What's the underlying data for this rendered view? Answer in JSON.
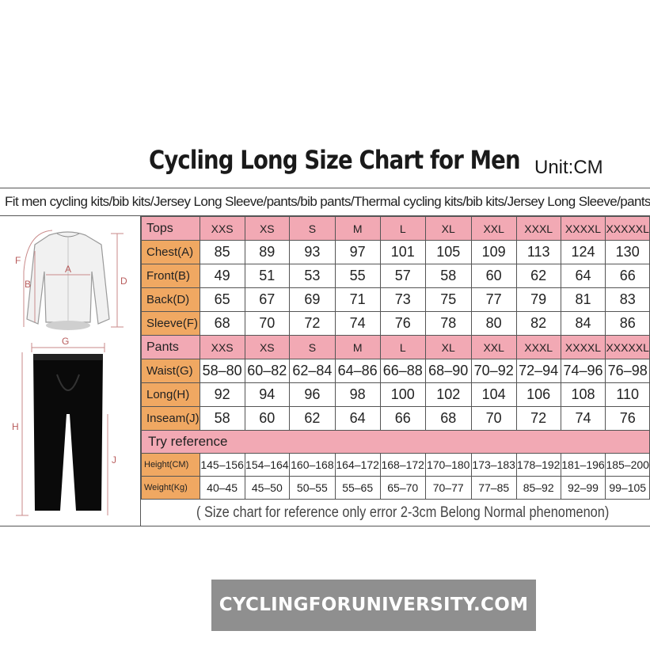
{
  "title": "Cycling Long Size Chart for Men",
  "unit": "Unit:CM",
  "fit_line": "Fit men cycling kits/bib kits/Jersey Long Sleeve/pants/bib pants/Thermal cycling kits/bib kits/Jersey Long Sleeve/pants/bib pants",
  "diagram_labels": {
    "a": "A",
    "b": "B",
    "d": "D",
    "f": "F",
    "g": "G",
    "h": "H",
    "j": "J"
  },
  "colors": {
    "label_orange": "#f0a862",
    "header_pink": "#f2a9b4",
    "watermark_bg": "#8f8f8f"
  },
  "tops": {
    "header": "Tops",
    "sizes": [
      "XXS",
      "XS",
      "S",
      "M",
      "L",
      "XL",
      "XXL",
      "XXXL",
      "XXXXL",
      "XXXXXL"
    ],
    "rows": [
      {
        "label": "Chest(A)",
        "values": [
          "85",
          "89",
          "93",
          "97",
          "101",
          "105",
          "109",
          "113",
          "124",
          "130"
        ]
      },
      {
        "label": "Front(B)",
        "values": [
          "49",
          "51",
          "53",
          "55",
          "57",
          "58",
          "60",
          "62",
          "64",
          "66"
        ]
      },
      {
        "label": "Back(D)",
        "values": [
          "65",
          "67",
          "69",
          "71",
          "73",
          "75",
          "77",
          "79",
          "81",
          "83"
        ]
      },
      {
        "label": "Sleeve(F)",
        "values": [
          "68",
          "70",
          "72",
          "74",
          "76",
          "78",
          "80",
          "82",
          "84",
          "86"
        ]
      }
    ]
  },
  "pants": {
    "header": "Pants",
    "sizes": [
      "XXS",
      "XS",
      "S",
      "M",
      "L",
      "XL",
      "XXL",
      "XXXL",
      "XXXXL",
      "XXXXXL"
    ],
    "rows": [
      {
        "label": "Waist(G)",
        "values": [
          "58–80",
          "60–82",
          "62–84",
          "64–86",
          "66–88",
          "68–90",
          "70–92",
          "72–94",
          "74–96",
          "76–98"
        ]
      },
      {
        "label": "Long(H)",
        "values": [
          "92",
          "94",
          "96",
          "98",
          "100",
          "102",
          "104",
          "106",
          "108",
          "110"
        ]
      },
      {
        "label": "Inseam(J)",
        "values": [
          "58",
          "60",
          "62",
          "64",
          "66",
          "68",
          "70",
          "72",
          "74",
          "76"
        ]
      }
    ]
  },
  "reference": {
    "header": "Try reference",
    "rows": [
      {
        "label": "Height(CM)",
        "values": [
          "145–156",
          "154–164",
          "160–168",
          "164–172",
          "168–172",
          "170–180",
          "173–183",
          "178–192",
          "181–196",
          "185–200"
        ]
      },
      {
        "label": "Weight(Kg)",
        "values": [
          "40–45",
          "45–50",
          "50–55",
          "55–65",
          "65–70",
          "70–77",
          "77–85",
          "85–92",
          "92–99",
          "99–105"
        ]
      }
    ]
  },
  "note": "( Size chart for reference only  error 2-3cm  Belong Normal phenomenon)",
  "watermark": "CYCLINGFORUNIVERSITY.COM"
}
